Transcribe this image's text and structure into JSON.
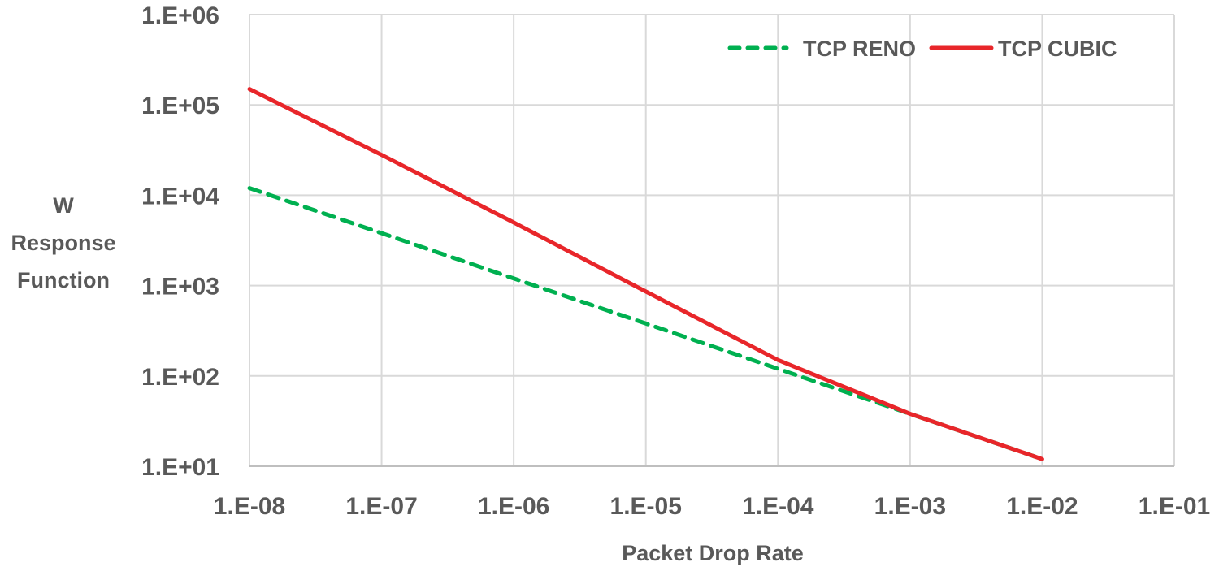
{
  "chart_data": {
    "type": "line",
    "title": "",
    "xlabel": "Packet Drop Rate",
    "ylabel": [
      "W",
      "Response",
      "Function"
    ],
    "x_scale": "log",
    "y_scale": "log",
    "xlim": [
      1e-08,
      0.1
    ],
    "ylim": [
      10.0,
      1000000.0
    ],
    "x_tick_labels": [
      "1.E-08",
      "1.E-07",
      "1.E-06",
      "1.E-05",
      "1.E-04",
      "1.E-03",
      "1.E-02",
      "1.E-01"
    ],
    "y_tick_labels": [
      "1.E+06",
      "1.E+05",
      "1.E+04",
      "1.E+03",
      "1.E+02",
      "1.E+01"
    ],
    "grid": true,
    "legend_position": "top-right",
    "x": [
      1e-08,
      1e-07,
      1e-06,
      1e-05,
      0.0001,
      0.001,
      0.01
    ],
    "series": [
      {
        "name": "TCP RENO",
        "color": "#00B050",
        "style": "dashed",
        "values": [
          12000,
          3800,
          1200,
          380,
          120,
          38,
          12
        ]
      },
      {
        "name": "TCP CUBIC",
        "color": "#E8262A",
        "style": "solid",
        "values": [
          150000,
          28000,
          5000,
          860,
          150,
          38,
          12
        ]
      }
    ]
  },
  "legend": {
    "items": [
      "TCP RENO",
      "TCP CUBIC"
    ]
  },
  "axes": {
    "x_title": "Packet Drop Rate",
    "y_title_lines": [
      "W",
      "Response",
      "Function"
    ]
  }
}
